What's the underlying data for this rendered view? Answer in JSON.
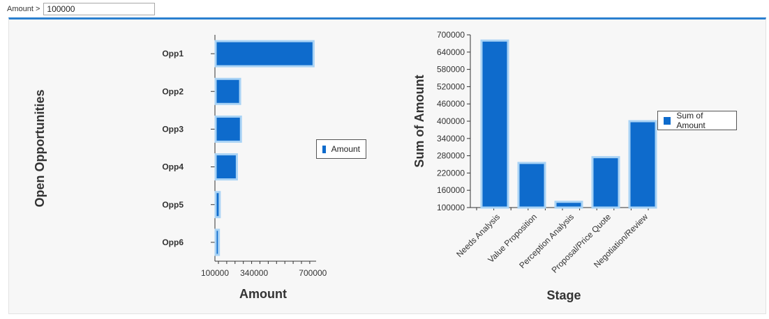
{
  "filter": {
    "label": "Amount >",
    "value": "100000"
  },
  "colors": {
    "bar": "#0e6bcc",
    "bar_outline": "#a9d3f5",
    "accent": "#2a7fcf"
  },
  "chart_data": [
    {
      "type": "bar",
      "orientation": "horizontal",
      "categories": [
        "Opp1",
        "Opp2",
        "Opp3",
        "Opp4",
        "Opp5",
        "Opp6"
      ],
      "series": [
        {
          "name": "Amount",
          "values": [
            700000,
            250000,
            255000,
            230000,
            125000,
            120000
          ]
        }
      ],
      "xlabel": "Amount",
      "ylabel": "Open Opportunities",
      "xlim": [
        100000,
        720000
      ],
      "xticks": [
        "100000",
        "340000",
        "700000"
      ],
      "legend": "right"
    },
    {
      "type": "bar",
      "categories": [
        "Needs Analysis",
        "Value Proposition",
        "Perception Analysis",
        "Proposal/Price Quote",
        "Negotiation/Review"
      ],
      "series": [
        {
          "name": "Sum of Amount",
          "values": [
            680000,
            255000,
            120000,
            275000,
            400000
          ]
        }
      ],
      "xlabel": "Stage",
      "ylabel": "Sum of Amount",
      "ylim": [
        100000,
        700000
      ],
      "yticks": [
        "100000",
        "160000",
        "220000",
        "280000",
        "340000",
        "400000",
        "460000",
        "520000",
        "580000",
        "640000",
        "700000"
      ],
      "legend": "right"
    }
  ]
}
